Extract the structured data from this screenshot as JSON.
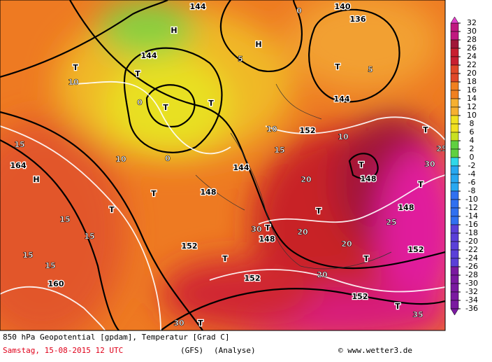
{
  "map": {
    "labels": [
      "H",
      "H",
      "H",
      "T",
      "T",
      "T",
      "T",
      "T",
      "T",
      "T",
      "T",
      "T",
      "T",
      "T",
      "T",
      "T",
      "T",
      "T",
      "T",
      "144",
      "144",
      "144",
      "144",
      "140",
      "136",
      "152",
      "148",
      "148",
      "152",
      "160",
      "164",
      "152",
      "152",
      "152",
      "148",
      "148",
      "10",
      "10",
      "10",
      "10",
      "15",
      "15",
      "15",
      "15",
      "15",
      "15",
      "20",
      "20",
      "20",
      "20",
      "25",
      "25",
      "30",
      "30",
      "30",
      "35",
      "0",
      "5",
      "5",
      "0",
      "0"
    ]
  },
  "legend": {
    "ticks": [
      32,
      30,
      28,
      26,
      24,
      22,
      20,
      18,
      16,
      14,
      12,
      10,
      8,
      6,
      4,
      2,
      0,
      -2,
      -4,
      -6,
      -8,
      -10,
      -12,
      -14,
      -16,
      -18,
      -20,
      -22,
      -24,
      -26,
      -28,
      -30,
      -32,
      -34,
      -36
    ]
  },
  "footer": {
    "title": "850 hPa Geopotential [gpdam], Temperatur [Grad C]",
    "date": "Samstag, 15-08-2015  12 UTC",
    "model": "(GFS)",
    "run": "(Analyse)",
    "credit": "© www.wetter3.de"
  }
}
